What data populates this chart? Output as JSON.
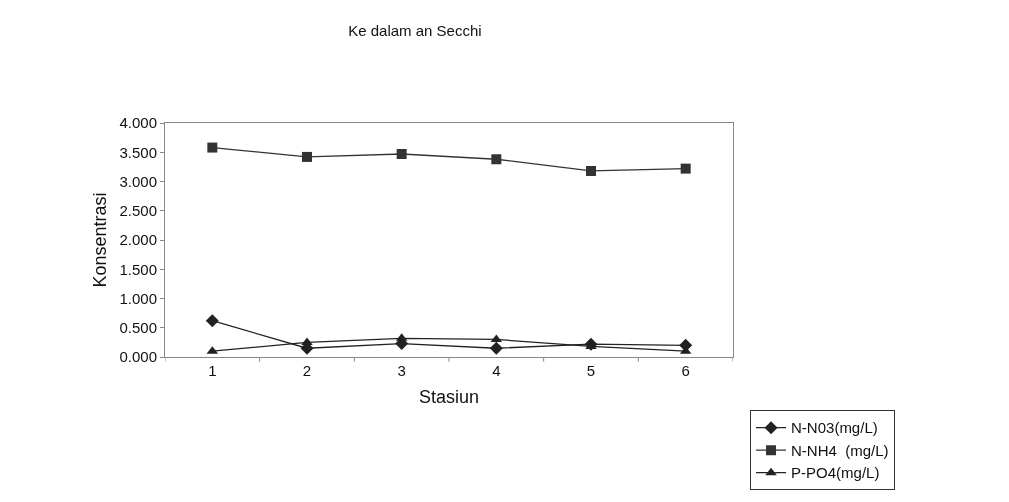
{
  "chart_data": {
    "type": "line",
    "title": "Ke dalam an Secchi",
    "xlabel": "Stasiun",
    "ylabel": "Konsentrasi",
    "categories": [
      "1",
      "2",
      "3",
      "4",
      "5",
      "6"
    ],
    "series": [
      {
        "name": "N-N03(mg/L)",
        "color": "#222222",
        "marker": "diamond",
        "values": [
          0.62,
          0.15,
          0.23,
          0.15,
          0.22,
          0.2
        ]
      },
      {
        "name": "N-NH4  (mg/L)",
        "color": "#333333",
        "marker": "square",
        "values": [
          3.58,
          3.42,
          3.47,
          3.38,
          3.18,
          3.22
        ]
      },
      {
        "name": "P-PO4(mg/L)",
        "color": "#222222",
        "marker": "triangle",
        "values": [
          0.1,
          0.25,
          0.32,
          0.3,
          0.18,
          0.1
        ]
      }
    ],
    "ylim": [
      0,
      4
    ],
    "yticks": [
      {
        "value": 0,
        "label": "0.000"
      },
      {
        "value": 0.5,
        "label": "0.500"
      },
      {
        "value": 1,
        "label": "1.000"
      },
      {
        "value": 1.5,
        "label": "1.500"
      },
      {
        "value": 2,
        "label": "2.000"
      },
      {
        "value": 2.5,
        "label": "2.500"
      },
      {
        "value": 3,
        "label": "3.000"
      },
      {
        "value": 3.5,
        "label": "3.500"
      },
      {
        "value": 4,
        "label": "4.000"
      }
    ],
    "grid": false,
    "legend": "bottom right",
    "line_style": "solid"
  }
}
